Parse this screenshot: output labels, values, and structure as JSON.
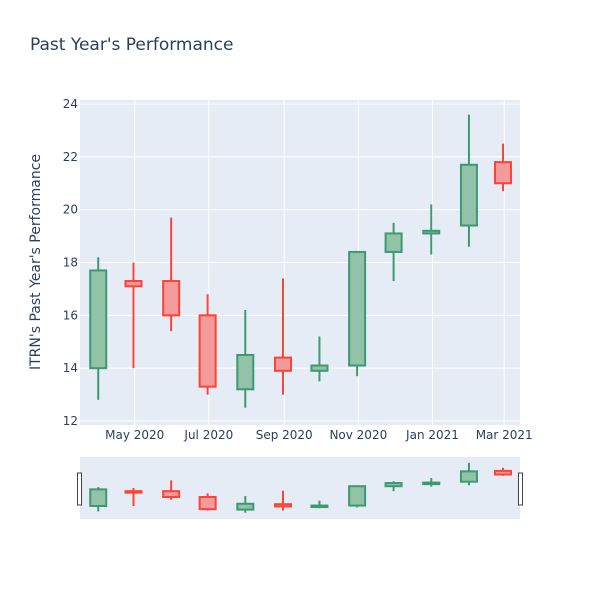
{
  "chart_data": {
    "type": "candlestick",
    "title": "Past Year's Performance",
    "xlabel": "",
    "ylabel": "ITRN's Past Year's Performance",
    "ylim": [
      12,
      24
    ],
    "y_ticks": [
      12,
      14,
      16,
      18,
      20,
      22,
      24
    ],
    "x_tick_labels": [
      "May 2020",
      "Jul 2020",
      "Sep 2020",
      "Nov 2020",
      "Jan 2021",
      "Mar 2021"
    ],
    "grid": true,
    "range_slider": true,
    "colors": {
      "increasing": "#3d9970",
      "increasing_fill": "#92c2a8",
      "decreasing": "#ff4136",
      "decreasing_fill": "#f39a9a",
      "plot_bg": "#e5ecf6",
      "grid": "#ffffff",
      "text": "#2a3f5f"
    },
    "candles": [
      {
        "date": "2020-04-01",
        "open": 14.0,
        "high": 18.2,
        "low": 12.8,
        "close": 17.7
      },
      {
        "date": "2020-04-30",
        "open": 17.3,
        "high": 18.0,
        "low": 14.0,
        "close": 17.1
      },
      {
        "date": "2020-05-31",
        "open": 17.3,
        "high": 19.7,
        "low": 15.4,
        "close": 16.0
      },
      {
        "date": "2020-06-30",
        "open": 16.0,
        "high": 16.8,
        "low": 13.0,
        "close": 13.3
      },
      {
        "date": "2020-07-31",
        "open": 13.2,
        "high": 16.2,
        "low": 12.5,
        "close": 14.5
      },
      {
        "date": "2020-08-31",
        "open": 14.4,
        "high": 17.4,
        "low": 13.0,
        "close": 13.9
      },
      {
        "date": "2020-09-30",
        "open": 13.9,
        "high": 15.2,
        "low": 13.5,
        "close": 14.1
      },
      {
        "date": "2020-10-31",
        "open": 14.1,
        "high": 18.4,
        "low": 13.7,
        "close": 18.4
      },
      {
        "date": "2020-11-30",
        "open": 18.4,
        "high": 19.5,
        "low": 17.3,
        "close": 19.1
      },
      {
        "date": "2020-12-31",
        "open": 19.1,
        "high": 20.2,
        "low": 18.3,
        "close": 19.2
      },
      {
        "date": "2021-01-31",
        "open": 19.4,
        "high": 23.6,
        "low": 18.6,
        "close": 21.7
      },
      {
        "date": "2021-02-28",
        "open": 21.8,
        "high": 22.5,
        "low": 20.7,
        "close": 21.0
      }
    ]
  }
}
